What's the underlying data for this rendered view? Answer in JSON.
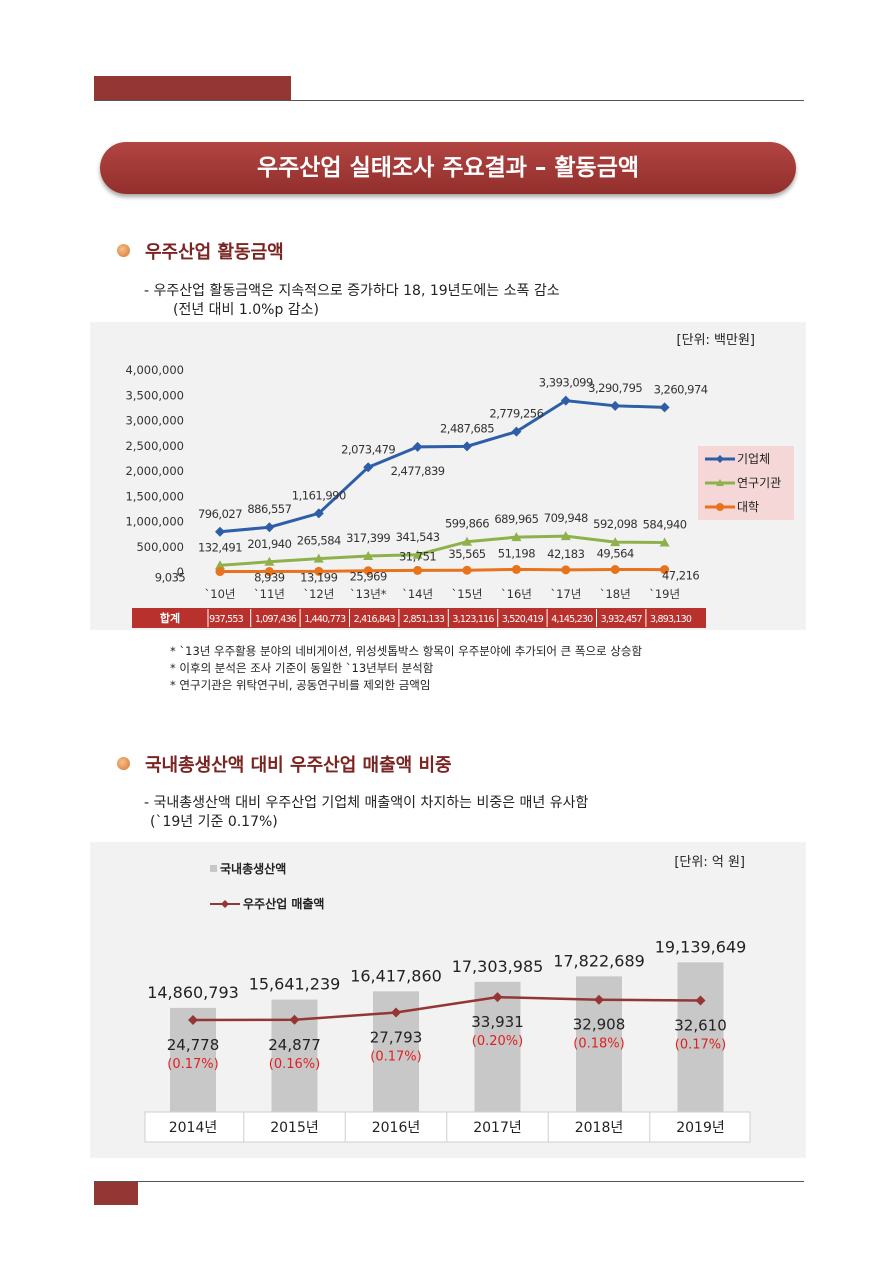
{
  "title": "우주산업 실태조사 주요결과 – 활동금액",
  "section1": {
    "heading": "우주산업 활동금액",
    "desc1": "-  우주산업 활동금액은 지속적으로 증가하다 18, 19년도에는 소폭 감소",
    "desc2": "(전년 대비 1.0%p 감소)",
    "notes": [
      "* `13년 우주활용 분야의 네비게이션, 위성셋톱박스 항목이 우주분야에 추가되어 큰 폭으로 상승함",
      "* 이후의 분석은 조사 기준이 동일한 `13년부터 분석함",
      "* 연구기관은 위탁연구비, 공동연구비를 제외한 금액임"
    ]
  },
  "section2": {
    "heading": "국내총생산액 대비 우주산업 매출액 비중",
    "desc1": "- 국내총생산액 대비 우주산업 기업체 매출액이 차지하는 비중은 매년 유사함",
    "desc2": "(`19년 기준 0.17%)"
  },
  "chart_data": [
    {
      "type": "line",
      "unit": "[단위: 백만원]",
      "categories": [
        "`10년",
        "`11년",
        "`12년",
        "`13년*",
        "`14년",
        "`15년",
        "`16년",
        "`17년",
        "`18년",
        "`19년"
      ],
      "ylim": [
        0,
        4000000
      ],
      "yticks": [
        "0",
        "500,000",
        "1,000,000",
        "1,500,000",
        "2,000,000",
        "2,500,000",
        "3,000,000",
        "3,500,000",
        "4,000,000"
      ],
      "legend_position": "right",
      "series": [
        {
          "name": "기업체",
          "color": "#2e5ea8",
          "values": [
            796027,
            886557,
            1161990,
            2073479,
            2477839,
            2487685,
            2779256,
            3393099,
            3290795,
            3260974
          ],
          "labels": [
            "796,027",
            "886,557",
            "1,161,990",
            "2,073,479",
            "2,477,839",
            "2,487,685",
            "2,779,256",
            "3,393,099",
            "3,290,795",
            "3,260,974"
          ]
        },
        {
          "name": "연구기관",
          "color": "#8fb14c",
          "values": [
            132491,
            201940,
            265584,
            317399,
            341543,
            599866,
            689965,
            709948,
            592098,
            584940
          ],
          "labels": [
            "132,491",
            "201,940",
            "265,584",
            "317,399",
            "341,543",
            "599,866",
            "689,965",
            "709,948",
            "592,098",
            "584,940"
          ]
        },
        {
          "name": "대학",
          "color": "#e8731c",
          "values": [
            9035,
            8939,
            13199,
            25969,
            31751,
            35565,
            51198,
            42183,
            49564,
            47216
          ],
          "labels": [
            "9,035",
            "8,939",
            "13,199",
            "25,969",
            "31,751",
            "35,565",
            "51,198",
            "42,183",
            "49,564",
            "47,216"
          ]
        }
      ],
      "totals_label": "합계",
      "totals": [
        "937,553",
        "1,097,436",
        "1,440,773",
        "2,416,843",
        "2,851,133",
        "3,123,116",
        "3,520,419",
        "4,145,230",
        "3,932,457",
        "3,893,130"
      ]
    },
    {
      "type": "bar",
      "unit": "[단위: 억 원]",
      "categories": [
        "2014년",
        "2015년",
        "2016년",
        "2017년",
        "2018년",
        "2019년"
      ],
      "legend_position": "top-left",
      "series": [
        {
          "name": "국내총생산액",
          "color": "#c8c8c8",
          "values": [
            14860793,
            15641239,
            16417860,
            17303985,
            17822689,
            19139649
          ],
          "labels": [
            "14,860,793",
            "15,641,239",
            "16,417,860",
            "17,303,985",
            "17,822,689",
            "19,139,649"
          ]
        },
        {
          "name": "우주산업 매출액",
          "color": "#943634",
          "values": [
            24778,
            24877,
            27793,
            33931,
            32908,
            32610
          ],
          "labels": [
            "24,778",
            "24,877",
            "27,793",
            "33,931",
            "32,908",
            "32,610"
          ],
          "shares": [
            "(0.17%)",
            "(0.16%)",
            "(0.17%)",
            "(0.20%)",
            "(0.18%)",
            "(0.17%)"
          ]
        }
      ]
    }
  ]
}
